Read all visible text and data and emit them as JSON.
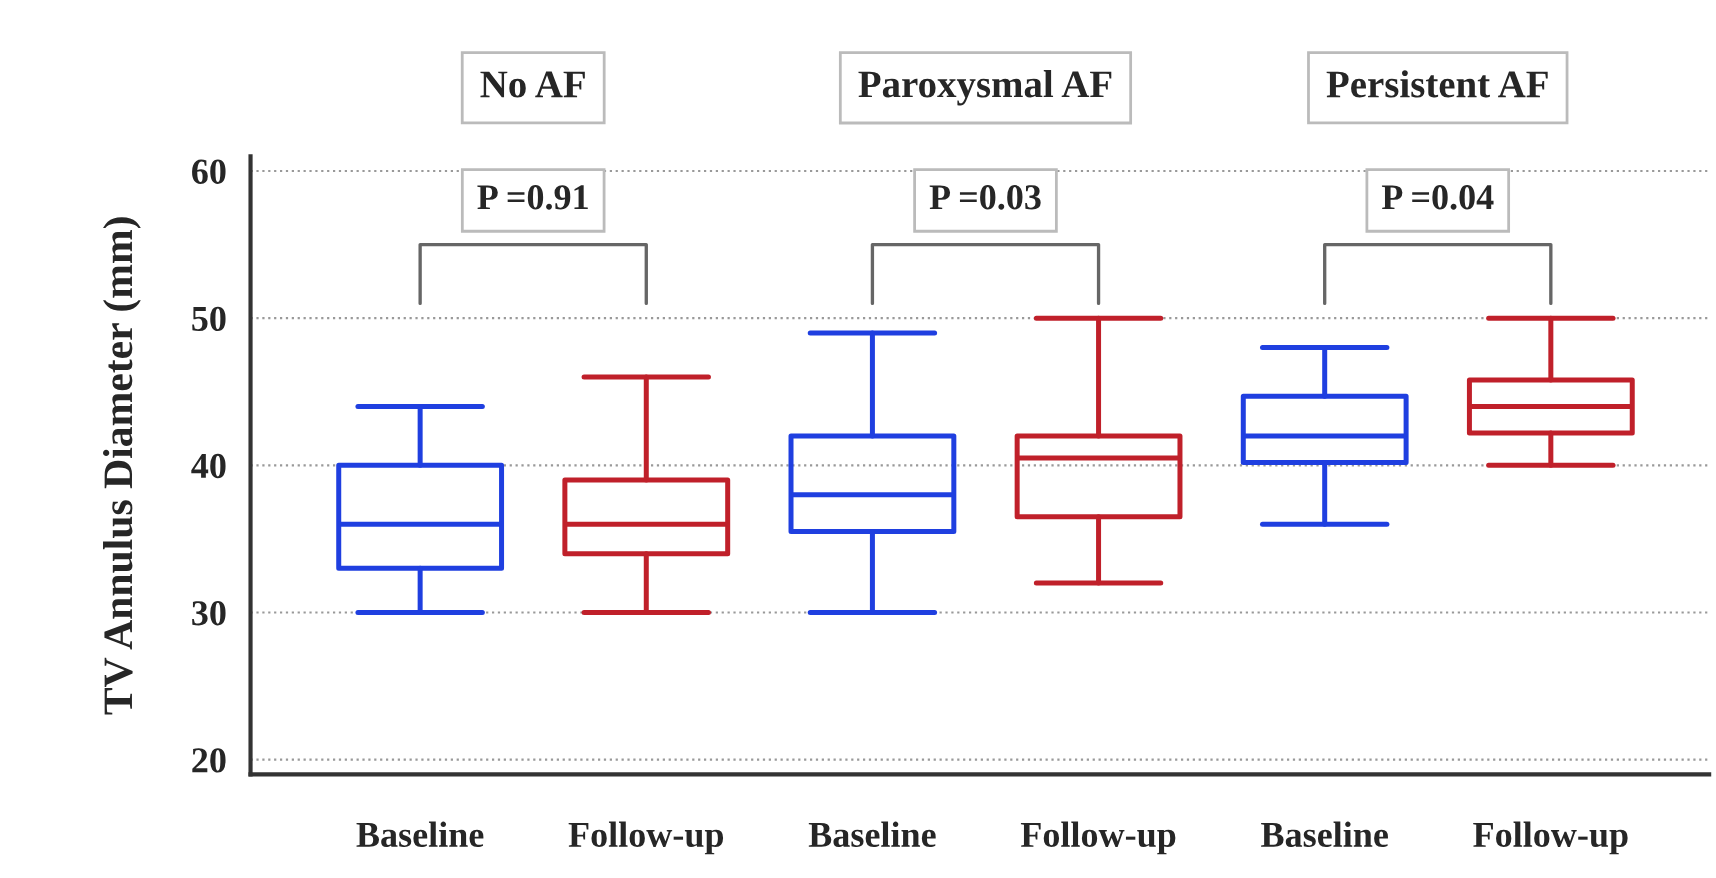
{
  "chart_data": {
    "type": "box",
    "ylabel": "TV Annulus Diameter (mm)",
    "categories": [
      "Baseline",
      "Follow-up",
      "Baseline",
      "Follow-up",
      "Baseline",
      "Follow-up"
    ],
    "boxes": [
      {
        "low": 30,
        "q1": 33,
        "median": 36,
        "q3": 40,
        "high": 44
      },
      {
        "low": 30,
        "q1": 34,
        "median": 36,
        "q3": 39,
        "high": 46
      },
      {
        "low": 30,
        "q1": 35.5,
        "median": 38,
        "q3": 42,
        "high": 49
      },
      {
        "low": 32,
        "q1": 36.5,
        "median": 40.5,
        "q3": 42,
        "high": 50
      },
      {
        "low": 36,
        "q1": 40.2,
        "median": 42,
        "q3": 44.7,
        "high": 48
      },
      {
        "low": 40,
        "q1": 42.2,
        "median": 44,
        "q3": 45.8,
        "high": 50
      }
    ],
    "colors": [
      "#1f3fe0",
      "#c0202a",
      "#1f3fe0",
      "#c0202a",
      "#1f3fe0",
      "#c0202a"
    ],
    "ylim": [
      19,
      61
    ],
    "yticks": [
      20,
      30,
      40,
      50,
      60
    ],
    "grid": "y",
    "annotations": [
      "No AF",
      "Paroxysmal AF",
      "Persistent AF",
      "P =0.91",
      "P =0.03",
      "P =0.04"
    ]
  }
}
